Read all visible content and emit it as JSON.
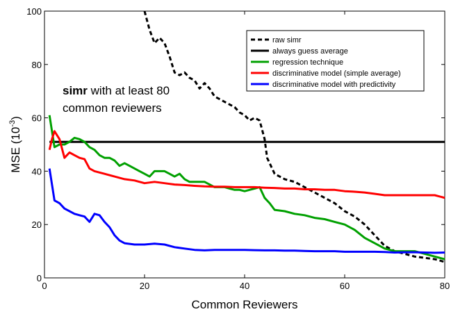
{
  "chart_data": {
    "type": "line",
    "xlabel": "Common Reviewers",
    "ylabel": "MSE (10",
    "ylabel_sup": "-3",
    "ylabel_end": ")",
    "xlim": [
      0,
      80
    ],
    "ylim": [
      0,
      100
    ],
    "xticks": [
      "0",
      "20",
      "40",
      "60",
      "80"
    ],
    "yticks": [
      "0",
      "20",
      "40",
      "60",
      "80",
      "100"
    ],
    "grid": false,
    "legend_position": "top-right",
    "annotation": {
      "bold": "simr",
      "line1_rest": " with at least 80",
      "line2": "common reviewers"
    },
    "series": [
      {
        "name": "raw simr",
        "color": "#000000",
        "style": "dashed",
        "points": [
          [
            20,
            100
          ],
          [
            21,
            93
          ],
          [
            22,
            88
          ],
          [
            23,
            90
          ],
          [
            24,
            88
          ],
          [
            25,
            83
          ],
          [
            26,
            77
          ],
          [
            27,
            76
          ],
          [
            28,
            77
          ],
          [
            29,
            75
          ],
          [
            30,
            74
          ],
          [
            31,
            71
          ],
          [
            32,
            73
          ],
          [
            33,
            71
          ],
          [
            34,
            68
          ],
          [
            35,
            67
          ],
          [
            36,
            66
          ],
          [
            37,
            65
          ],
          [
            38,
            64
          ],
          [
            39,
            62
          ],
          [
            40,
            61
          ],
          [
            41,
            59
          ],
          [
            42,
            60
          ],
          [
            43,
            59
          ],
          [
            44,
            52
          ],
          [
            44.5,
            45
          ],
          [
            45,
            43
          ],
          [
            46,
            39
          ],
          [
            47,
            38
          ],
          [
            48,
            37
          ],
          [
            50,
            36
          ],
          [
            52,
            34
          ],
          [
            54,
            32
          ],
          [
            56,
            30
          ],
          [
            58,
            28
          ],
          [
            60,
            25
          ],
          [
            62,
            23
          ],
          [
            64,
            20
          ],
          [
            66,
            16
          ],
          [
            68,
            12
          ],
          [
            70,
            10
          ],
          [
            72,
            9
          ],
          [
            74,
            8
          ],
          [
            76,
            7.5
          ],
          [
            78,
            7
          ],
          [
            80,
            6
          ]
        ]
      },
      {
        "name": "always guess average",
        "color": "#000000",
        "style": "solid",
        "points": [
          [
            1,
            51
          ],
          [
            80,
            51
          ]
        ]
      },
      {
        "name": "regression technique",
        "color": "#00a000",
        "style": "solid",
        "points": [
          [
            1,
            61
          ],
          [
            1.5,
            55
          ],
          [
            2,
            49
          ],
          [
            3,
            50
          ],
          [
            4,
            50
          ],
          [
            5,
            51
          ],
          [
            6,
            52.5
          ],
          [
            7,
            52
          ],
          [
            8,
            51
          ],
          [
            9,
            49
          ],
          [
            10,
            48
          ],
          [
            11,
            46
          ],
          [
            12,
            45
          ],
          [
            13,
            45
          ],
          [
            14,
            44
          ],
          [
            15,
            42
          ],
          [
            16,
            43
          ],
          [
            17,
            42
          ],
          [
            18,
            41
          ],
          [
            19,
            40
          ],
          [
            20,
            39
          ],
          [
            21,
            38
          ],
          [
            22,
            40
          ],
          [
            23,
            40
          ],
          [
            24,
            40
          ],
          [
            25,
            39
          ],
          [
            26,
            38
          ],
          [
            27,
            39
          ],
          [
            28,
            37
          ],
          [
            29,
            36
          ],
          [
            30,
            36
          ],
          [
            31,
            36
          ],
          [
            32,
            36
          ],
          [
            33,
            35
          ],
          [
            34,
            34
          ],
          [
            35,
            34
          ],
          [
            36,
            34
          ],
          [
            37,
            33.5
          ],
          [
            38,
            33
          ],
          [
            39,
            33
          ],
          [
            40,
            32.5
          ],
          [
            41,
            33
          ],
          [
            42,
            33.5
          ],
          [
            43,
            34
          ],
          [
            44,
            30
          ],
          [
            45,
            28
          ],
          [
            46,
            25.5
          ],
          [
            48,
            25
          ],
          [
            50,
            24
          ],
          [
            52,
            23.5
          ],
          [
            54,
            22.5
          ],
          [
            56,
            22
          ],
          [
            58,
            21
          ],
          [
            60,
            20
          ],
          [
            62,
            18
          ],
          [
            64,
            15
          ],
          [
            66,
            13
          ],
          [
            68,
            11
          ],
          [
            70,
            10
          ],
          [
            72,
            10
          ],
          [
            74,
            10
          ],
          [
            76,
            9
          ],
          [
            78,
            8
          ],
          [
            80,
            7
          ]
        ]
      },
      {
        "name": "discriminative model (simple average)",
        "color": "#ff0000",
        "style": "solid",
        "points": [
          [
            1,
            48
          ],
          [
            1.5,
            52
          ],
          [
            2,
            55
          ],
          [
            3,
            52
          ],
          [
            4,
            45
          ],
          [
            5,
            47
          ],
          [
            6,
            46
          ],
          [
            7,
            45
          ],
          [
            8,
            44.5
          ],
          [
            9,
            41
          ],
          [
            10,
            40
          ],
          [
            12,
            39
          ],
          [
            14,
            38
          ],
          [
            16,
            37
          ],
          [
            18,
            36.5
          ],
          [
            20,
            35.5
          ],
          [
            22,
            36
          ],
          [
            24,
            35.5
          ],
          [
            26,
            35
          ],
          [
            28,
            34.8
          ],
          [
            30,
            34.5
          ],
          [
            32,
            34.3
          ],
          [
            34,
            34.2
          ],
          [
            36,
            34.2
          ],
          [
            38,
            34
          ],
          [
            40,
            34
          ],
          [
            42,
            34
          ],
          [
            44,
            33.8
          ],
          [
            46,
            33.7
          ],
          [
            48,
            33.5
          ],
          [
            50,
            33.5
          ],
          [
            52,
            33.2
          ],
          [
            54,
            33.2
          ],
          [
            56,
            33
          ],
          [
            58,
            33
          ],
          [
            60,
            32.5
          ],
          [
            62,
            32.3
          ],
          [
            64,
            32
          ],
          [
            66,
            31.5
          ],
          [
            68,
            31
          ],
          [
            70,
            31
          ],
          [
            72,
            31
          ],
          [
            74,
            31
          ],
          [
            76,
            31
          ],
          [
            78,
            31
          ],
          [
            80,
            30
          ]
        ]
      },
      {
        "name": "discriminative model with predictivity",
        "color": "#0000ff",
        "style": "solid",
        "points": [
          [
            1,
            41
          ],
          [
            1.5,
            35
          ],
          [
            2,
            29
          ],
          [
            3,
            28
          ],
          [
            4,
            26
          ],
          [
            5,
            25
          ],
          [
            6,
            24
          ],
          [
            7,
            23.5
          ],
          [
            8,
            23
          ],
          [
            9,
            21
          ],
          [
            10,
            24
          ],
          [
            11,
            23.5
          ],
          [
            12,
            21
          ],
          [
            13,
            19
          ],
          [
            14,
            16
          ],
          [
            15,
            14
          ],
          [
            16,
            13
          ],
          [
            18,
            12.5
          ],
          [
            20,
            12.5
          ],
          [
            22,
            12.8
          ],
          [
            24,
            12.5
          ],
          [
            26,
            11.5
          ],
          [
            28,
            11
          ],
          [
            30,
            10.5
          ],
          [
            32,
            10.3
          ],
          [
            34,
            10.5
          ],
          [
            36,
            10.5
          ],
          [
            38,
            10.5
          ],
          [
            40,
            10.5
          ],
          [
            42,
            10.4
          ],
          [
            44,
            10.3
          ],
          [
            46,
            10.3
          ],
          [
            48,
            10.2
          ],
          [
            50,
            10.2
          ],
          [
            52,
            10.1
          ],
          [
            54,
            10
          ],
          [
            56,
            10
          ],
          [
            58,
            10
          ],
          [
            60,
            9.8
          ],
          [
            62,
            9.8
          ],
          [
            64,
            9.8
          ],
          [
            66,
            9.8
          ],
          [
            68,
            9.7
          ],
          [
            70,
            9.5
          ],
          [
            72,
            9.6
          ],
          [
            74,
            9.6
          ],
          [
            76,
            9.5
          ],
          [
            78,
            9.4
          ],
          [
            80,
            9.5
          ]
        ]
      }
    ]
  }
}
